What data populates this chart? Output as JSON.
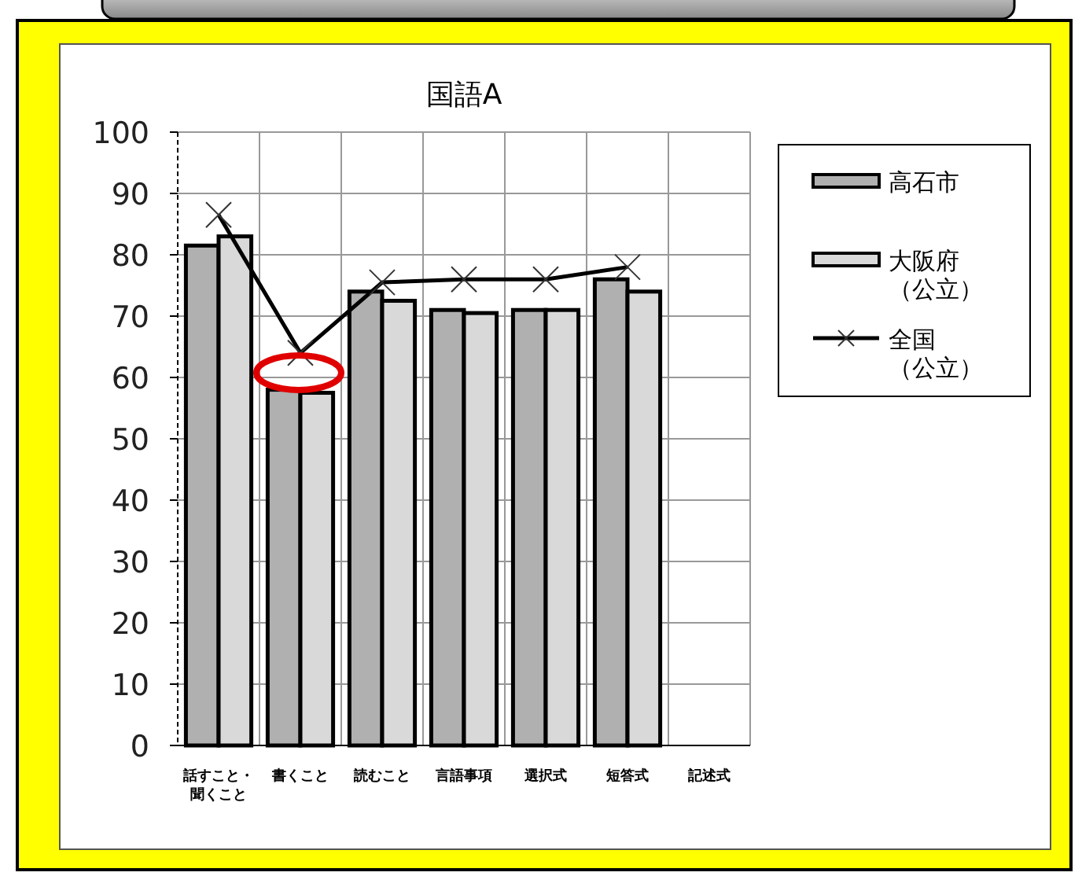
{
  "chart_data": {
    "type": "bar",
    "title": "国語A",
    "categories": [
      "話すこと・聞くこと",
      "書くこと",
      "読むこと",
      "言語事項",
      "選択式",
      "短答式",
      "記述式"
    ],
    "series": [
      {
        "name": "高石市",
        "color": "#b0b0b0",
        "values": [
          81.5,
          58,
          74,
          71,
          71,
          76,
          null
        ]
      },
      {
        "name": "大阪府（公立）",
        "color": "#d9d9d9",
        "values": [
          83,
          57.5,
          72.5,
          70.5,
          71,
          74,
          null
        ]
      },
      {
        "name": "全国（公立）",
        "type": "line",
        "color": "#000000",
        "marker": "cross",
        "values": [
          86.5,
          64,
          75.5,
          76,
          76,
          78,
          null
        ]
      }
    ],
    "ylim": [
      0,
      100
    ],
    "yticks": [
      0,
      10,
      20,
      30,
      40,
      50,
      60,
      70,
      80,
      90,
      100
    ],
    "grid": true,
    "legend": "right"
  }
}
